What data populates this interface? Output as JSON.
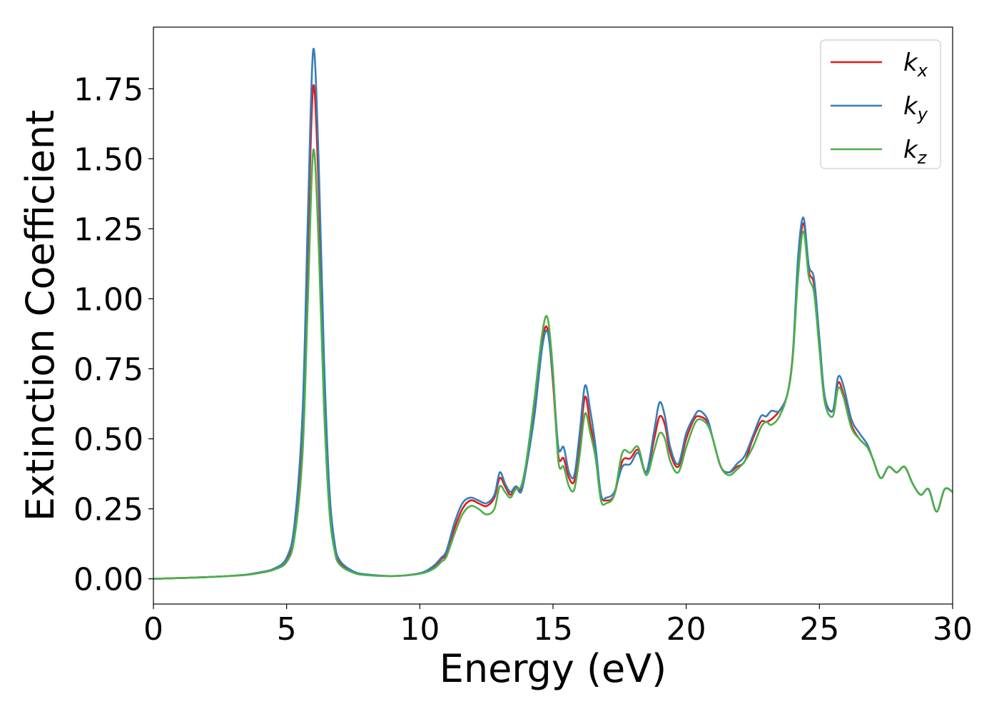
{
  "chart_data": {
    "type": "line",
    "title": "",
    "xlabel": "Energy (eV)",
    "ylabel": "Extinction Coefficient",
    "xlim": [
      0,
      30
    ],
    "ylim": [
      -0.09,
      1.97
    ],
    "xticks": [
      0,
      5,
      10,
      15,
      20,
      25,
      30
    ],
    "xtick_labels": [
      "0",
      "5",
      "10",
      "15",
      "20",
      "25",
      "30"
    ],
    "yticks": [
      0.0,
      0.25,
      0.5,
      0.75,
      1.0,
      1.25,
      1.5,
      1.75
    ],
    "ytick_labels": [
      "0.00",
      "0.25",
      "0.50",
      "0.75",
      "1.00",
      "1.25",
      "1.50",
      "1.75"
    ],
    "grid": false,
    "legend_position": "top-right",
    "series": [
      {
        "name": "k_x",
        "label_main": "k",
        "label_sub": "x",
        "color": "#e41a1c",
        "x": [
          0,
          1,
          2,
          3,
          3.5,
          4,
          4.5,
          5,
          5.3,
          5.6,
          5.8,
          6.0,
          6.2,
          6.4,
          6.6,
          6.8,
          7.0,
          7.5,
          8,
          9,
          10,
          10.5,
          10.8,
          11,
          11.3,
          11.6,
          11.9,
          12.2,
          12.5,
          12.8,
          13.0,
          13.2,
          13.4,
          13.6,
          13.8,
          14.0,
          14.3,
          14.6,
          14.8,
          15.0,
          15.2,
          15.4,
          15.6,
          15.8,
          16.0,
          16.2,
          16.4,
          16.6,
          16.8,
          17.0,
          17.3,
          17.6,
          17.9,
          18.2,
          18.5,
          18.8,
          19.0,
          19.2,
          19.4,
          19.7,
          20.0,
          20.3,
          20.5,
          20.8,
          21.0,
          21.3,
          21.6,
          21.9,
          22.2,
          22.5,
          22.8,
          23.0,
          23.2,
          23.5,
          23.8,
          24.0,
          24.2,
          24.4,
          24.6,
          24.8,
          25.0,
          25.2,
          25.5,
          25.7,
          25.9,
          26.2,
          26.5,
          26.8,
          27.0,
          27.3,
          27.6,
          27.9,
          28.2,
          28.5,
          28.8,
          29.1,
          29.4,
          29.7,
          30.0
        ],
        "y": [
          0.0,
          0.003,
          0.006,
          0.011,
          0.015,
          0.023,
          0.035,
          0.07,
          0.18,
          0.55,
          1.2,
          1.76,
          1.4,
          0.75,
          0.3,
          0.12,
          0.06,
          0.025,
          0.015,
          0.01,
          0.02,
          0.04,
          0.07,
          0.09,
          0.18,
          0.25,
          0.28,
          0.27,
          0.26,
          0.29,
          0.36,
          0.33,
          0.3,
          0.33,
          0.32,
          0.4,
          0.6,
          0.85,
          0.89,
          0.7,
          0.44,
          0.43,
          0.36,
          0.35,
          0.48,
          0.65,
          0.55,
          0.45,
          0.3,
          0.28,
          0.3,
          0.42,
          0.43,
          0.46,
          0.38,
          0.5,
          0.58,
          0.55,
          0.45,
          0.4,
          0.5,
          0.57,
          0.58,
          0.56,
          0.5,
          0.4,
          0.38,
          0.4,
          0.42,
          0.5,
          0.56,
          0.56,
          0.57,
          0.6,
          0.66,
          0.8,
          1.1,
          1.27,
          1.1,
          1.05,
          0.85,
          0.65,
          0.6,
          0.7,
          0.66,
          0.55,
          0.5,
          0.47,
          0.43,
          0.36,
          0.4,
          0.38,
          0.4,
          0.34,
          0.3,
          0.32,
          0.24,
          0.32,
          0.31
        ]
      },
      {
        "name": "k_y",
        "label_main": "k",
        "label_sub": "y",
        "color": "#377eb8",
        "x": [
          0,
          1,
          2,
          3,
          3.5,
          4,
          4.5,
          5,
          5.3,
          5.6,
          5.8,
          6.0,
          6.2,
          6.4,
          6.6,
          6.8,
          7.0,
          7.5,
          8,
          9,
          10,
          10.5,
          10.8,
          11,
          11.3,
          11.6,
          11.9,
          12.2,
          12.5,
          12.8,
          13.0,
          13.2,
          13.4,
          13.6,
          13.8,
          14.0,
          14.3,
          14.6,
          14.8,
          15.0,
          15.2,
          15.4,
          15.6,
          15.8,
          16.0,
          16.2,
          16.4,
          16.6,
          16.8,
          17.0,
          17.3,
          17.6,
          17.9,
          18.2,
          18.5,
          18.8,
          19.0,
          19.2,
          19.4,
          19.7,
          20.0,
          20.3,
          20.5,
          20.8,
          21.0,
          21.3,
          21.6,
          21.9,
          22.2,
          22.5,
          22.8,
          23.0,
          23.2,
          23.5,
          23.8,
          24.0,
          24.2,
          24.4,
          24.6,
          24.8,
          25.0,
          25.2,
          25.5,
          25.7,
          25.9,
          26.2,
          26.5,
          26.8,
          27.0,
          27.3,
          27.6,
          27.9,
          28.2,
          28.5,
          28.8,
          29.1,
          29.4,
          29.7,
          30.0
        ],
        "y": [
          0.0,
          0.003,
          0.006,
          0.011,
          0.015,
          0.023,
          0.035,
          0.075,
          0.2,
          0.6,
          1.3,
          1.89,
          1.5,
          0.8,
          0.33,
          0.13,
          0.065,
          0.027,
          0.016,
          0.01,
          0.02,
          0.045,
          0.075,
          0.1,
          0.2,
          0.27,
          0.29,
          0.28,
          0.27,
          0.3,
          0.38,
          0.34,
          0.31,
          0.33,
          0.31,
          0.4,
          0.58,
          0.83,
          0.88,
          0.72,
          0.47,
          0.47,
          0.38,
          0.37,
          0.52,
          0.69,
          0.6,
          0.47,
          0.3,
          0.29,
          0.31,
          0.4,
          0.41,
          0.45,
          0.38,
          0.53,
          0.63,
          0.58,
          0.47,
          0.41,
          0.52,
          0.58,
          0.6,
          0.57,
          0.5,
          0.4,
          0.38,
          0.41,
          0.44,
          0.51,
          0.58,
          0.58,
          0.6,
          0.6,
          0.66,
          0.8,
          1.15,
          1.29,
          1.12,
          1.07,
          0.86,
          0.65,
          0.6,
          0.72,
          0.69,
          0.57,
          0.52,
          0.48,
          0.43,
          0.36,
          0.4,
          0.38,
          0.4,
          0.34,
          0.3,
          0.32,
          0.24,
          0.32,
          0.31
        ]
      },
      {
        "name": "k_z",
        "label_main": "k",
        "label_sub": "z",
        "color": "#4daf4a",
        "x": [
          0,
          1,
          2,
          3,
          3.5,
          4,
          4.5,
          5,
          5.3,
          5.6,
          5.8,
          6.0,
          6.2,
          6.4,
          6.6,
          6.8,
          7.0,
          7.5,
          8,
          9,
          10,
          10.5,
          10.8,
          11,
          11.3,
          11.6,
          11.9,
          12.2,
          12.5,
          12.8,
          13.0,
          13.2,
          13.4,
          13.6,
          13.8,
          14.0,
          14.3,
          14.6,
          14.8,
          15.0,
          15.2,
          15.4,
          15.6,
          15.8,
          16.0,
          16.2,
          16.4,
          16.6,
          16.8,
          17.0,
          17.3,
          17.6,
          17.9,
          18.2,
          18.5,
          18.8,
          19.0,
          19.2,
          19.4,
          19.7,
          20.0,
          20.3,
          20.5,
          20.8,
          21.0,
          21.3,
          21.6,
          21.9,
          22.2,
          22.5,
          22.8,
          23.0,
          23.2,
          23.5,
          23.8,
          24.0,
          24.2,
          24.4,
          24.6,
          24.8,
          25.0,
          25.2,
          25.5,
          25.7,
          25.9,
          26.2,
          26.5,
          26.8,
          27.0,
          27.3,
          27.6,
          27.9,
          28.2,
          28.5,
          28.8,
          29.1,
          29.4,
          29.7,
          30.0
        ],
        "y": [
          0.0,
          0.003,
          0.006,
          0.011,
          0.014,
          0.021,
          0.032,
          0.06,
          0.15,
          0.45,
          1.0,
          1.53,
          1.2,
          0.62,
          0.25,
          0.1,
          0.05,
          0.022,
          0.013,
          0.01,
          0.018,
          0.035,
          0.06,
          0.08,
          0.16,
          0.23,
          0.26,
          0.25,
          0.23,
          0.25,
          0.33,
          0.31,
          0.29,
          0.32,
          0.33,
          0.42,
          0.64,
          0.88,
          0.93,
          0.74,
          0.42,
          0.4,
          0.33,
          0.32,
          0.44,
          0.59,
          0.52,
          0.43,
          0.28,
          0.27,
          0.3,
          0.45,
          0.45,
          0.47,
          0.37,
          0.46,
          0.52,
          0.5,
          0.42,
          0.38,
          0.47,
          0.55,
          0.57,
          0.55,
          0.5,
          0.4,
          0.37,
          0.39,
          0.42,
          0.47,
          0.54,
          0.56,
          0.55,
          0.58,
          0.66,
          0.79,
          1.08,
          1.24,
          1.08,
          1.02,
          0.82,
          0.63,
          0.58,
          0.68,
          0.65,
          0.54,
          0.5,
          0.47,
          0.43,
          0.36,
          0.4,
          0.38,
          0.4,
          0.34,
          0.3,
          0.32,
          0.24,
          0.32,
          0.31
        ]
      }
    ]
  }
}
